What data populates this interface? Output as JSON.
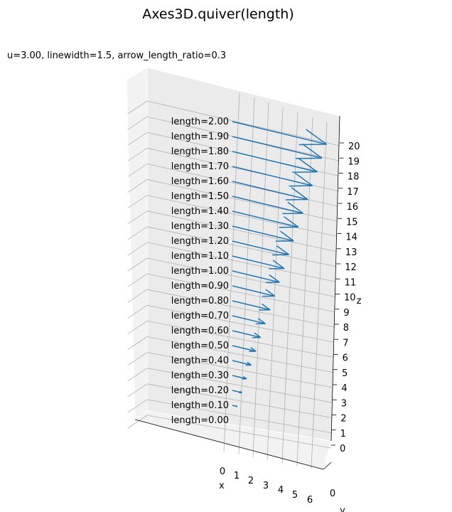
{
  "chart_data": {
    "type": "quiver3d",
    "title": "Axes3D.quiver(length)",
    "subtitle": "u=3.00, linewidth=1.5, arrow_length_ratio=0.3",
    "xlabel": "x",
    "ylabel": "y",
    "zlabel": "z",
    "x_ticks": [
      "0",
      "1",
      "2",
      "3",
      "4",
      "5",
      "6"
    ],
    "y_ticks": [
      "0"
    ],
    "z_ticks": [
      "0",
      "1",
      "2",
      "3",
      "4",
      "5",
      "6",
      "7",
      "8",
      "9",
      "10",
      "11",
      "12",
      "13",
      "14",
      "15",
      "16",
      "17",
      "18",
      "19",
      "20"
    ],
    "grid": true,
    "arrow_color": "#1f77b4",
    "series": [
      {
        "label": "length=0.00",
        "length": 0.0
      },
      {
        "label": "length=0.10",
        "length": 0.1
      },
      {
        "label": "length=0.20",
        "length": 0.2
      },
      {
        "label": "length=0.30",
        "length": 0.3
      },
      {
        "label": "length=0.40",
        "length": 0.4
      },
      {
        "label": "length=0.50",
        "length": 0.5
      },
      {
        "label": "length=0.60",
        "length": 0.6
      },
      {
        "label": "length=0.70",
        "length": 0.7
      },
      {
        "label": "length=0.80",
        "length": 0.8
      },
      {
        "label": "length=0.90",
        "length": 0.9
      },
      {
        "label": "length=1.00",
        "length": 1.0
      },
      {
        "label": "length=1.10",
        "length": 1.1
      },
      {
        "label": "length=1.20",
        "length": 1.2
      },
      {
        "label": "length=1.30",
        "length": 1.3
      },
      {
        "label": "length=1.40",
        "length": 1.4
      },
      {
        "label": "length=1.50",
        "length": 1.5
      },
      {
        "label": "length=1.60",
        "length": 1.6
      },
      {
        "label": "length=1.70",
        "length": 1.7
      },
      {
        "label": "length=1.80",
        "length": 1.8
      },
      {
        "label": "length=1.90",
        "length": 1.9
      },
      {
        "label": "length=2.00",
        "length": 2.0
      }
    ]
  }
}
